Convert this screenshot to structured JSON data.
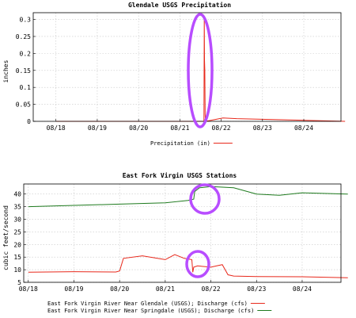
{
  "chart_data": [
    {
      "type": "line",
      "title": "Glendale USGS Precipitation",
      "ylabel": "inches",
      "xlabel": "",
      "x_ticks": [
        "08/18",
        "08/19",
        "08/20",
        "08/21",
        "08/22",
        "08/23",
        "08/24"
      ],
      "y_ticks": [
        "0",
        "0.05",
        "0.1",
        "0.15",
        "0.2",
        "0.25",
        "0.3"
      ],
      "ylim": [
        0,
        0.32
      ],
      "grid": true,
      "legend_position": "bottom",
      "series": [
        {
          "name": "Precipitation (in)",
          "color": "#e8291c",
          "x": [
            "2024-08-18T00:00",
            "2024-08-21T14:00",
            "2024-08-21T14:10",
            "2024-08-21T14:20",
            "2024-08-21T14:30",
            "2024-08-21T14:40",
            "2024-08-21T14:50",
            "2024-08-21T15:00",
            "2024-08-22T01:00",
            "2024-08-22T09:00",
            "2024-08-25T00:00"
          ],
          "values": [
            0,
            0,
            0.31,
            0.18,
            0.15,
            0.02,
            0.005,
            0,
            0.01,
            0.008,
            0
          ]
        }
      ],
      "annotations": [
        {
          "type": "ellipse",
          "color": "#b84dff",
          "around": "precipitation peak on 08/21"
        }
      ]
    },
    {
      "type": "line",
      "title": "East Fork Virgin USGS Stations",
      "ylabel": "cubic feet/second",
      "xlabel": "",
      "x_ticks": [
        "08/18",
        "08/19",
        "08/20",
        "08/21",
        "08/22",
        "08/23",
        "08/24"
      ],
      "y_ticks": [
        "5",
        "10",
        "15",
        "20",
        "25",
        "30",
        "35",
        "40"
      ],
      "ylim": [
        5,
        44
      ],
      "grid": true,
      "legend_position": "bottom",
      "series": [
        {
          "name": "East Fork Virgin River Near Glendale (USGS); Discharge (cfs)",
          "color": "#e8291c",
          "x": [
            "2024-08-18T00:00",
            "2024-08-19T00:00",
            "2024-08-19T22:00",
            "2024-08-20T00:00",
            "2024-08-20T02:00",
            "2024-08-20T12:00",
            "2024-08-21T00:00",
            "2024-08-21T05:00",
            "2024-08-21T10:00",
            "2024-08-21T14:00",
            "2024-08-21T14:30",
            "2024-08-21T15:00",
            "2024-08-21T17:00",
            "2024-08-22T00:00",
            "2024-08-22T03:00",
            "2024-08-22T06:00",
            "2024-08-22T09:00",
            "2024-08-22T12:00",
            "2024-08-23T00:00",
            "2024-08-24T00:00",
            "2024-08-25T00:00"
          ],
          "values": [
            9,
            9.2,
            9.1,
            9.5,
            14.5,
            15.5,
            14,
            16,
            14.5,
            14,
            9,
            11,
            11.5,
            11,
            11.5,
            12,
            8,
            7.5,
            7.3,
            7.2,
            6.8
          ]
        },
        {
          "name": "East Fork Virgin River Near Springdale (USGS); Discharge (cfs)",
          "color": "#1e7a1e",
          "x": [
            "2024-08-18T00:00",
            "2024-08-19T00:00",
            "2024-08-20T00:00",
            "2024-08-21T00:00",
            "2024-08-21T12:00",
            "2024-08-21T15:00",
            "2024-08-21T15:30",
            "2024-08-21T18:00",
            "2024-08-22T00:00",
            "2024-08-22T12:00",
            "2024-08-23T00:00",
            "2024-08-23T12:00",
            "2024-08-24T00:00",
            "2024-08-25T00:00"
          ],
          "values": [
            35,
            35.5,
            36,
            36.5,
            37.5,
            38,
            41,
            42.5,
            43,
            42.5,
            40,
            39.5,
            40.5,
            40
          ]
        }
      ],
      "annotations": [
        {
          "type": "ellipse",
          "color": "#b84dff",
          "around": "Springdale discharge jump on 08/21"
        },
        {
          "type": "ellipse",
          "color": "#b84dff",
          "around": "Glendale discharge drop on 08/21"
        }
      ]
    }
  ]
}
